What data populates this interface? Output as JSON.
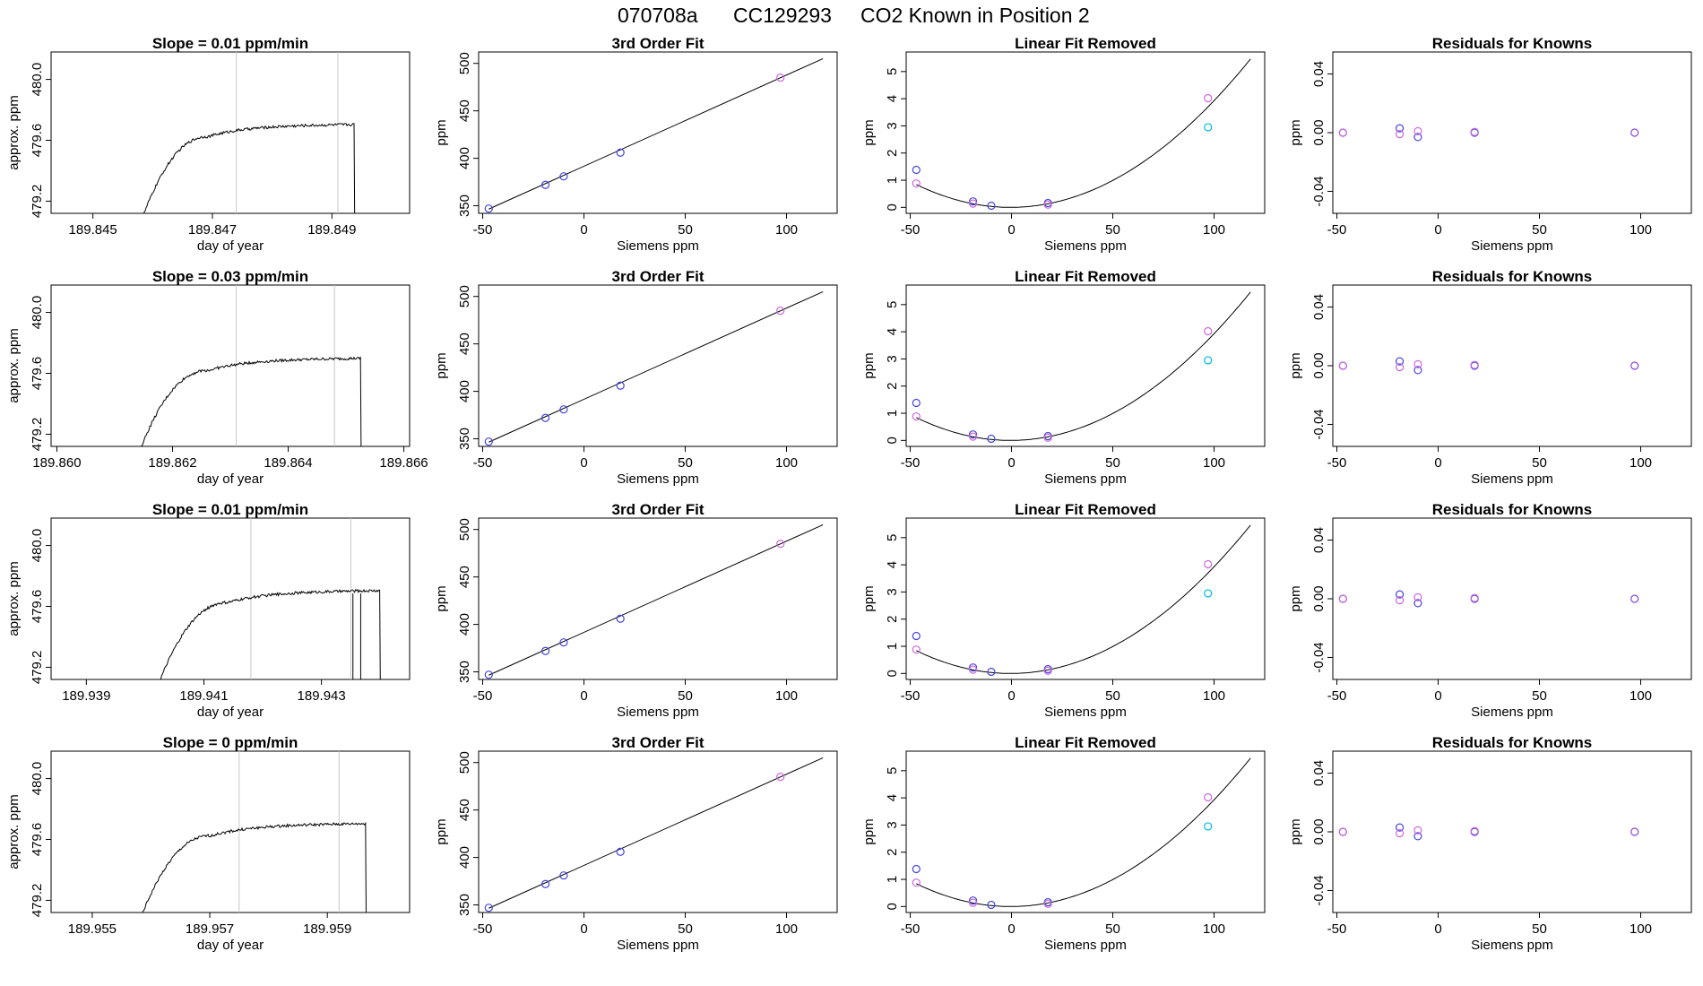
{
  "header": {
    "title_parts": [
      "070708a",
      "CC129293",
      "CO2 Known in Position  2"
    ]
  },
  "colors": {
    "line": "#000000",
    "grey_marker": "#c8c8c8",
    "blue": "#4444dd",
    "violet": "#cc66dd",
    "cyan": "#00bbdd",
    "purple": "#8844dd"
  },
  "chart_data": [
    {
      "type": "line",
      "panel": "time-series",
      "row": 1,
      "title": "Slope =  0.01  ppm/min",
      "xlabel": "day of year",
      "ylabel": "approx. ppm",
      "xlim": [
        189.8443,
        189.8503
      ],
      "ylim": [
        479.12,
        480.18
      ],
      "xticks": [
        189.845,
        189.847,
        189.849
      ],
      "xtick_labels": [
        "189.845",
        "189.847",
        "189.849"
      ],
      "yticks": [
        479.2,
        479.6,
        480.0
      ],
      "ytick_labels": [
        "479.2",
        "479.6",
        "480.0"
      ],
      "vlines": [
        189.8474,
        189.8491
      ],
      "x_start": 189.8458,
      "x_end": 189.84937,
      "plateau": 479.665
    },
    {
      "type": "line",
      "panel": "time-series",
      "row": 2,
      "title": "Slope =  0.03  ppm/min",
      "xlabel": "day of year",
      "ylabel": "approx. ppm",
      "xlim": [
        189.8599,
        189.8661
      ],
      "ylim": [
        479.12,
        480.18
      ],
      "xticks": [
        189.86,
        189.862,
        189.864,
        189.866
      ],
      "xtick_labels": [
        "189.860",
        "189.862",
        "189.864",
        "189.866"
      ],
      "yticks": [
        479.2,
        479.6,
        480.0
      ],
      "ytick_labels": [
        "479.2",
        "479.6",
        "480.0"
      ],
      "vlines": [
        189.8631,
        189.8648
      ],
      "x_start": 189.8614,
      "x_end": 189.86525,
      "plateau": 479.66
    },
    {
      "type": "line",
      "panel": "time-series",
      "row": 3,
      "title": "Slope =  0.01  ppm/min",
      "xlabel": "day of year",
      "ylabel": "approx. ppm",
      "xlim": [
        189.9384,
        189.9445
      ],
      "ylim": [
        479.12,
        480.18
      ],
      "xticks": [
        189.939,
        189.941,
        189.943
      ],
      "xtick_labels": [
        "189.939",
        "189.941",
        "189.943"
      ],
      "yticks": [
        479.2,
        479.6,
        480.0
      ],
      "ytick_labels": [
        "479.2",
        "479.6",
        "480.0"
      ],
      "vlines": [
        189.9418,
        189.9435
      ],
      "x_start": 189.9402,
      "x_end": 189.94399,
      "plateau": 479.665
    },
    {
      "type": "line",
      "panel": "time-series",
      "row": 4,
      "title": "Slope =  0  ppm/min",
      "xlabel": "day of year",
      "ylabel": "approx. ppm",
      "xlim": [
        189.9543,
        189.9604
      ],
      "ylim": [
        479.12,
        480.18
      ],
      "xticks": [
        189.955,
        189.957,
        189.959
      ],
      "xtick_labels": [
        "189.955",
        "189.957",
        "189.959"
      ],
      "yticks": [
        479.2,
        479.6,
        480.0
      ],
      "ytick_labels": [
        "479.2",
        "479.6",
        "480.0"
      ],
      "vlines": [
        189.9575,
        189.9592
      ],
      "x_start": 189.9558,
      "x_end": 189.95965,
      "plateau": 479.665
    },
    {
      "type": "scatter",
      "panel": "fit",
      "rows": [
        1,
        2,
        3,
        4
      ],
      "title": "3rd Order Fit",
      "xlabel": "Siemens ppm",
      "ylabel": "ppm",
      "xlim": [
        -52,
        125
      ],
      "ylim": [
        342,
        512
      ],
      "xticks": [
        -50,
        0,
        50,
        100
      ],
      "yticks": [
        350,
        400,
        450,
        500
      ],
      "line": [
        [
          -47,
          346.5
        ],
        [
          118,
          505
        ]
      ],
      "points": [
        {
          "x": -47,
          "y": 347,
          "color": "blue"
        },
        {
          "x": -19,
          "y": 372,
          "color": "blue"
        },
        {
          "x": -10,
          "y": 381,
          "color": "blue"
        },
        {
          "x": 18,
          "y": 406,
          "color": "blue"
        },
        {
          "x": 97,
          "y": 485,
          "color": "violet"
        }
      ]
    },
    {
      "type": "scatter",
      "panel": "linear-removed",
      "rows": [
        1,
        2,
        3,
        4
      ],
      "title": "Linear Fit Removed",
      "xlabel": "Siemens ppm",
      "ylabel": "ppm",
      "xlim": [
        -52,
        125
      ],
      "ylim": [
        -0.22,
        5.72
      ],
      "xticks": [
        -50,
        0,
        50,
        100
      ],
      "yticks": [
        0,
        1,
        2,
        3,
        4,
        5
      ],
      "curve": {
        "vertex_x": -0.5,
        "a": 0.000389,
        "from": -47,
        "to": 118
      },
      "points": [
        {
          "x": -47,
          "y": 1.38,
          "color": "blue"
        },
        {
          "x": -47,
          "y": 0.88,
          "color": "violet"
        },
        {
          "x": -19,
          "y": 0.22,
          "color": "blue"
        },
        {
          "x": -19,
          "y": 0.14,
          "color": "violet"
        },
        {
          "x": -10,
          "y": 0.06,
          "color": "blue"
        },
        {
          "x": 18,
          "y": 0.16,
          "color": "blue"
        },
        {
          "x": 18,
          "y": 0.1,
          "color": "violet"
        },
        {
          "x": 97,
          "y": 4.02,
          "color": "violet"
        },
        {
          "x": 97,
          "y": 2.95,
          "color": "cyan"
        }
      ]
    },
    {
      "type": "scatter",
      "panel": "residuals",
      "rows": [
        1,
        2,
        3,
        4
      ],
      "title": "Residuals for Knowns",
      "xlabel": "Siemens ppm",
      "ylabel": "ppm",
      "xlim": [
        -52,
        125
      ],
      "ylim": [
        -0.055,
        0.055
      ],
      "xticks": [
        -50,
        0,
        50,
        100
      ],
      "yticks": [
        -0.04,
        0.0,
        0.04
      ],
      "ytick_labels": [
        "-0.04",
        "0.00",
        "0.04"
      ],
      "points": [
        {
          "x": -47,
          "y": 0.0,
          "color": "blue"
        },
        {
          "x": -47,
          "y": 0.0,
          "color": "violet"
        },
        {
          "x": -19,
          "y": 0.003,
          "color": "blue"
        },
        {
          "x": -19,
          "y": -0.001,
          "color": "violet"
        },
        {
          "x": -10,
          "y": -0.003,
          "color": "blue"
        },
        {
          "x": -10,
          "y": 0.001,
          "color": "violet"
        },
        {
          "x": 18,
          "y": 0.0,
          "color": "blue"
        },
        {
          "x": 18,
          "y": 0.0005,
          "color": "violet"
        },
        {
          "x": 97,
          "y": 0.0,
          "color": "purple"
        }
      ]
    }
  ]
}
